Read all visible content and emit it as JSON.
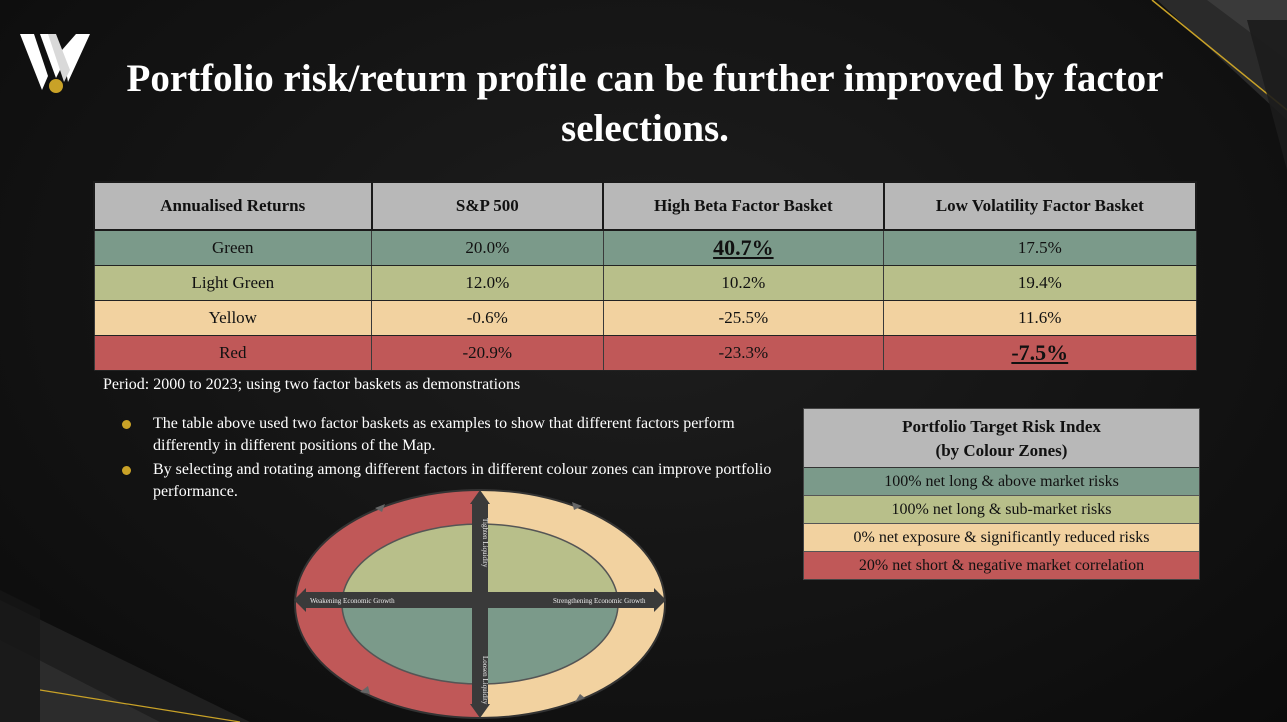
{
  "title": "Portfolio risk/return profile can be further improved by factor selections.",
  "table": {
    "headers": [
      "Annualised Returns",
      "S&P 500",
      "High Beta Factor Basket",
      "Low Volatility Factor Basket"
    ],
    "rows": [
      {
        "zone": "Green",
        "sp500": "20.0%",
        "high_beta": "40.7%",
        "low_vol": "17.5%"
      },
      {
        "zone": "Light Green",
        "sp500": "12.0%",
        "high_beta": "10.2%",
        "low_vol": "19.4%"
      },
      {
        "zone": "Yellow",
        "sp500": "-0.6%",
        "high_beta": "-25.5%",
        "low_vol": "11.6%"
      },
      {
        "zone": "Red",
        "sp500": "-20.9%",
        "high_beta": "-23.3%",
        "low_vol": "-7.5%"
      }
    ]
  },
  "period_note": "Period: 2000 to 2023; using two factor baskets as demonstrations",
  "bullets": [
    "The table above used two factor baskets as examples to show that different factors perform differently in different positions of the Map.",
    "By selecting and rotating among different factors in different colour zones can improve portfolio performance."
  ],
  "legend": {
    "title_line1": "Portfolio Target Risk Index",
    "title_line2": "(by Colour Zones)",
    "items": [
      "100% net long & above market risks",
      "100% net long & sub-market risks",
      "0% net exposure & significantly reduced risks",
      "20% net short & negative market correlation"
    ]
  },
  "map": {
    "top_label": "Tighten Liquidity",
    "bottom_label": "Loosen Liquidity",
    "left_label": "Weakening Economic Growth",
    "right_label": "Strengthening Economic Growth"
  },
  "colors": {
    "green": "#7b9a8a",
    "light_green": "#b8bf8a",
    "yellow": "#f2d2a0",
    "red": "#c05858",
    "gold": "#c9a227"
  }
}
